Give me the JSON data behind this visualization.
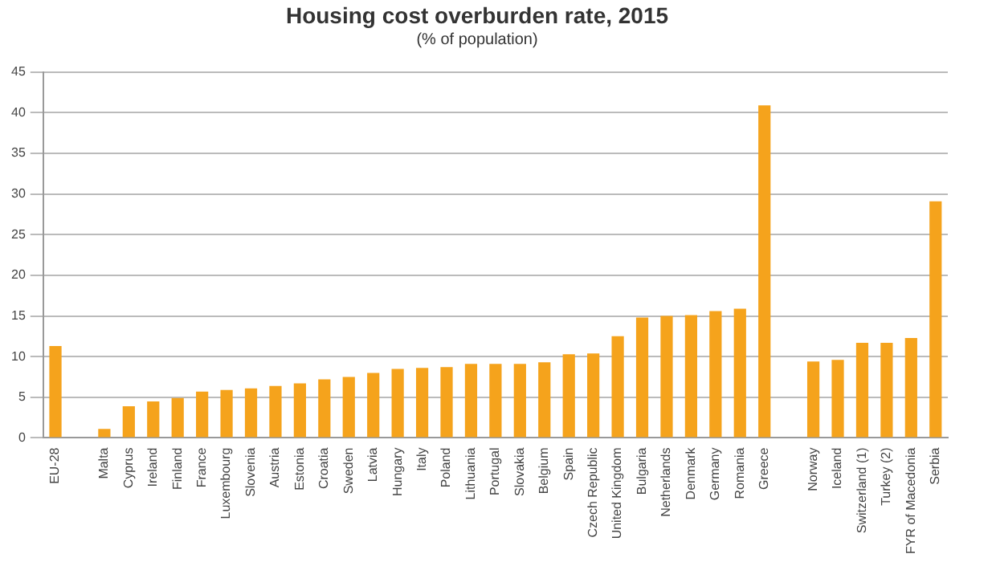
{
  "chart_data": {
    "type": "bar",
    "title": "Housing cost overburden rate, 2015",
    "subtitle": "(% of population)",
    "categories": [
      "EU-28",
      null,
      "Malta",
      "Cyprus",
      "Ireland",
      "Finland",
      "France",
      "Luxembourg",
      "Slovenia",
      "Austria",
      "Estonia",
      "Croatia",
      "Sweden",
      "Latvia",
      "Hungary",
      "Italy",
      "Poland",
      "Lithuania",
      "Portugal",
      "Slovakia",
      "Belgium",
      "Spain",
      "Czech Republic",
      "United Kingdom",
      "Bulgaria",
      "Netherlands",
      "Denmark",
      "Germany",
      "Romania",
      "Greece",
      null,
      "Norway",
      "Iceland",
      "Switzerland (1)",
      "Turkey (2)",
      "FYR of Macedonia",
      "Serbia"
    ],
    "values": [
      11.3,
      null,
      1.1,
      3.9,
      4.5,
      4.9,
      5.7,
      5.9,
      6.1,
      6.4,
      6.7,
      7.2,
      7.5,
      8.0,
      8.5,
      8.6,
      8.7,
      9.1,
      9.1,
      9.1,
      9.3,
      10.3,
      10.4,
      12.5,
      14.8,
      15.0,
      15.1,
      15.6,
      15.9,
      40.9,
      null,
      9.4,
      9.6,
      11.7,
      11.7,
      12.3,
      29.1
    ],
    "color": "#f5a31c",
    "ylim": [
      0,
      45
    ],
    "yticks": [
      0,
      5,
      10,
      15,
      20,
      25,
      30,
      35,
      40,
      45
    ],
    "grid": "y",
    "legend": false
  }
}
